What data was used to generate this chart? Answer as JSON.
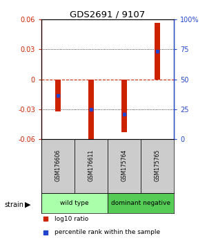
{
  "title": "GDS2691 / 9107",
  "samples": [
    "GSM176606",
    "GSM176611",
    "GSM175764",
    "GSM175765"
  ],
  "bar_tops": [
    -0.032,
    -0.062,
    -0.053,
    0.057
  ],
  "blue_dot_values": [
    -0.016,
    -0.03,
    -0.035,
    0.028
  ],
  "ylim": [
    -0.06,
    0.06
  ],
  "yticks_left": [
    -0.06,
    -0.03,
    0,
    0.03,
    0.06
  ],
  "yticks_right": [
    0,
    25,
    50,
    75,
    100
  ],
  "bar_color": "#cc2200",
  "dot_color": "#2244cc",
  "zero_line_color": "#cc2200",
  "bar_width": 0.18,
  "groups": [
    {
      "label": "wild type",
      "indices": [
        0,
        1
      ],
      "color": "#aaffaa"
    },
    {
      "label": "dominant negative",
      "indices": [
        2,
        3
      ],
      "color": "#55cc55"
    }
  ],
  "strain_label": "strain",
  "legend": [
    {
      "color": "#cc2200",
      "label": "log10 ratio"
    },
    {
      "color": "#2244cc",
      "label": "percentile rank within the sample"
    }
  ],
  "title_color": "#000000",
  "left_axis_color": "#cc2200",
  "right_axis_color": "#2244cc",
  "label_bg": "#cccccc"
}
